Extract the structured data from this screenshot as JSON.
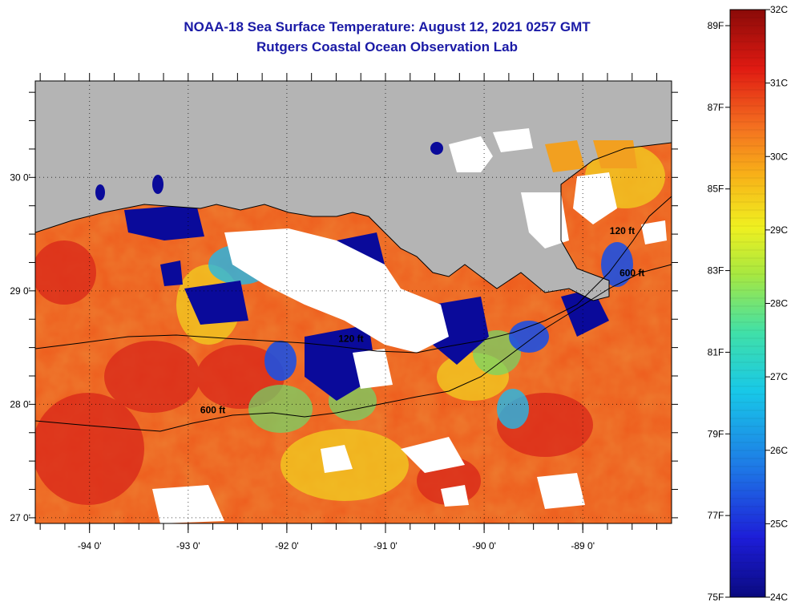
{
  "header": {
    "title": "NOAA-18 Sea Surface Temperature:  August 12, 2021 0257 GMT",
    "subtitle": "Rutgers Coastal Ocean Observation Lab"
  },
  "map": {
    "lon_range": [
      -94.55,
      -88.1
    ],
    "lat_range": [
      26.95,
      30.85
    ],
    "lon_ticks": [
      {
        "value": -94,
        "label": "-94 0'"
      },
      {
        "value": -93,
        "label": "-93 0'"
      },
      {
        "value": -92,
        "label": "-92 0'"
      },
      {
        "value": -91,
        "label": "-91 0'"
      },
      {
        "value": -90,
        "label": "-90 0'"
      },
      {
        "value": -89,
        "label": "-89 0'"
      }
    ],
    "lat_ticks": [
      {
        "value": 30,
        "label": "30 0'"
      },
      {
        "value": 29,
        "label": "29 0'"
      },
      {
        "value": 28,
        "label": "28 0'"
      },
      {
        "value": 27,
        "label": "27 0'"
      }
    ],
    "contour_labels": [
      {
        "text": "600 ft",
        "lon": -92.75,
        "lat": 27.92
      },
      {
        "text": "120 ft",
        "lon": -91.35,
        "lat": 28.55
      },
      {
        "text": "120 ft",
        "lon": -88.6,
        "lat": 29.5
      },
      {
        "text": "600 ft",
        "lon": -88.5,
        "lat": 29.13
      }
    ],
    "colors": {
      "land": "#b4b4b4",
      "cloud": "#ffffff",
      "grid": "#000000"
    }
  },
  "colorbar": {
    "celsius": [
      "32C",
      "31C",
      "30C",
      "29C",
      "28C",
      "27C",
      "26C",
      "25C",
      "24C"
    ],
    "fahrenheit": [
      "89F",
      "87F",
      "85F",
      "83F",
      "81F",
      "79F",
      "77F",
      "75F"
    ]
  }
}
